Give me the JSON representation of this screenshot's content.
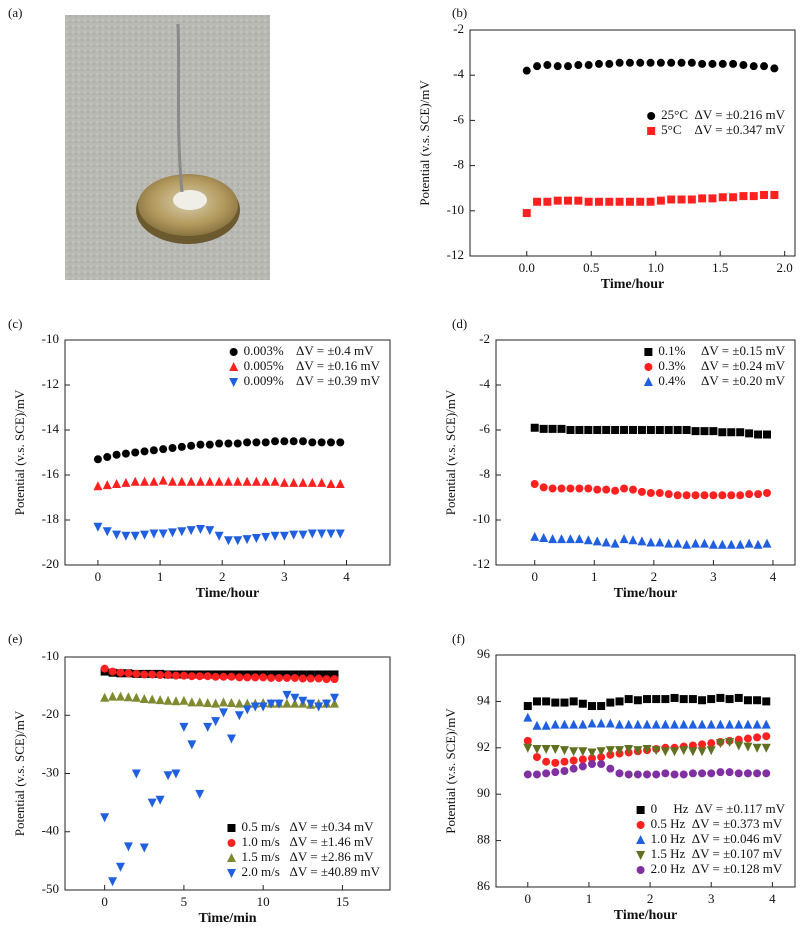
{
  "photo": {
    "label": "(a)"
  },
  "chart_data": [
    {
      "type": "scatter",
      "label": "(b)",
      "x_label": "Time/hour",
      "y_label": "Potential (v.s. SCE)/mV",
      "xlim": [
        -0.44,
        2.08
      ],
      "xticks": [
        {
          "value": 0,
          "label": "0.0"
        },
        {
          "value": 0.5,
          "label": "0.5"
        },
        {
          "value": 1,
          "label": "1.0"
        },
        {
          "value": 1.5,
          "label": "1.5"
        },
        {
          "value": 2,
          "label": "2.0"
        }
      ],
      "ylim": [
        -12,
        -2
      ],
      "yticks": [
        -12,
        -10,
        -8,
        -6,
        -4,
        -2
      ],
      "legend": "center-right",
      "x": [
        0,
        0.08,
        0.16,
        0.24,
        0.32,
        0.4,
        0.48,
        0.56,
        0.64,
        0.72,
        0.8,
        0.88,
        0.96,
        1.04,
        1.12,
        1.2,
        1.28,
        1.36,
        1.44,
        1.52,
        1.6,
        1.68,
        1.76,
        1.84,
        1.92
      ],
      "series": [
        {
          "name": "25°C  ΔV = ±0.216 mV",
          "color": "#000000",
          "marker": "circle",
          "values": [
            -3.8,
            -3.6,
            -3.55,
            -3.6,
            -3.6,
            -3.55,
            -3.55,
            -3.5,
            -3.5,
            -3.45,
            -3.45,
            -3.45,
            -3.45,
            -3.45,
            -3.45,
            -3.45,
            -3.45,
            -3.5,
            -3.5,
            -3.5,
            -3.5,
            -3.55,
            -3.6,
            -3.6,
            -3.7
          ]
        },
        {
          "name": "5°C    ΔV = ±0.347 mV",
          "color": "#ff2020",
          "marker": "square",
          "values": [
            -10.1,
            -9.6,
            -9.6,
            -9.55,
            -9.55,
            -9.55,
            -9.6,
            -9.6,
            -9.6,
            -9.6,
            -9.6,
            -9.6,
            -9.6,
            -9.55,
            -9.5,
            -9.5,
            -9.5,
            -9.45,
            -9.45,
            -9.4,
            -9.4,
            -9.35,
            -9.35,
            -9.3,
            -9.3
          ]
        }
      ]
    },
    {
      "type": "scatter",
      "label": "(c)",
      "x_label": "Time/hour",
      "y_label": "Potential (v.s. SCE)/mV",
      "xlim": [
        -0.53,
        4.7
      ],
      "xticks": [
        0,
        1,
        2,
        3,
        4
      ],
      "ylim": [
        -20,
        -10
      ],
      "yticks": [
        -20,
        -18,
        -16,
        -14,
        -12,
        -10
      ],
      "legend": "top-right",
      "x": [
        0,
        0.15,
        0.3,
        0.45,
        0.6,
        0.75,
        0.9,
        1.05,
        1.2,
        1.35,
        1.5,
        1.65,
        1.8,
        1.95,
        2.1,
        2.25,
        2.4,
        2.55,
        2.7,
        2.85,
        3,
        3.15,
        3.3,
        3.45,
        3.6,
        3.75,
        3.9
      ],
      "series": [
        {
          "name": "0.003%    ΔV = ±0.4 mV",
          "color": "#000000",
          "marker": "circle",
          "values": [
            -15.3,
            -15.2,
            -15.1,
            -15.05,
            -15,
            -14.95,
            -14.9,
            -14.85,
            -14.8,
            -14.75,
            -14.7,
            -14.65,
            -14.65,
            -14.6,
            -14.6,
            -14.6,
            -14.55,
            -14.55,
            -14.55,
            -14.5,
            -14.5,
            -14.5,
            -14.5,
            -14.55,
            -14.55,
            -14.55,
            -14.55
          ]
        },
        {
          "name": "0.005%    ΔV = ±0.16 mV",
          "color": "#ff2020",
          "marker": "triangle-up",
          "values": [
            -16.5,
            -16.45,
            -16.4,
            -16.35,
            -16.3,
            -16.3,
            -16.3,
            -16.25,
            -16.3,
            -16.3,
            -16.3,
            -16.3,
            -16.3,
            -16.3,
            -16.3,
            -16.3,
            -16.3,
            -16.3,
            -16.3,
            -16.3,
            -16.35,
            -16.35,
            -16.35,
            -16.35,
            -16.35,
            -16.4,
            -16.4
          ]
        },
        {
          "name": "0.009%    ΔV = ±0.39 mV",
          "color": "#2060e0",
          "marker": "triangle-down",
          "values": [
            -18.3,
            -18.5,
            -18.65,
            -18.7,
            -18.7,
            -18.65,
            -18.6,
            -18.6,
            -18.55,
            -18.5,
            -18.45,
            -18.4,
            -18.45,
            -18.7,
            -18.9,
            -18.9,
            -18.85,
            -18.8,
            -18.75,
            -18.7,
            -18.7,
            -18.65,
            -18.65,
            -18.6,
            -18.6,
            -18.6,
            -18.6
          ]
        }
      ]
    },
    {
      "type": "scatter",
      "label": "(d)",
      "x_label": "Time/hour",
      "y_label": "Potential (v.s. SCE)/mV",
      "xlim": [
        -0.65,
        4.37
      ],
      "xticks": [
        0,
        1,
        2,
        3,
        4
      ],
      "ylim": [
        -12,
        -2
      ],
      "yticks": [
        -12,
        -10,
        -8,
        -6,
        -4,
        -2
      ],
      "legend": "top-right",
      "x": [
        0,
        0.15,
        0.3,
        0.45,
        0.6,
        0.75,
        0.9,
        1.05,
        1.2,
        1.35,
        1.5,
        1.65,
        1.8,
        1.95,
        2.1,
        2.25,
        2.4,
        2.55,
        2.7,
        2.85,
        3,
        3.15,
        3.3,
        3.45,
        3.6,
        3.75,
        3.9
      ],
      "series": [
        {
          "name": "0.1%     ΔV = ±0.15 mV",
          "color": "#000000",
          "marker": "square",
          "values": [
            -5.9,
            -5.95,
            -5.95,
            -5.95,
            -6,
            -6,
            -6,
            -6,
            -6,
            -6,
            -6,
            -6,
            -6,
            -6,
            -6,
            -6,
            -6,
            -6,
            -6.05,
            -6.05,
            -6.05,
            -6.1,
            -6.1,
            -6.1,
            -6.15,
            -6.2,
            -6.2
          ]
        },
        {
          "name": "0.3%     ΔV = ±0.24 mV",
          "color": "#ff2020",
          "marker": "circle",
          "values": [
            -8.4,
            -8.55,
            -8.6,
            -8.6,
            -8.6,
            -8.6,
            -8.6,
            -8.65,
            -8.65,
            -8.7,
            -8.6,
            -8.65,
            -8.75,
            -8.8,
            -8.8,
            -8.85,
            -8.9,
            -8.9,
            -8.9,
            -8.9,
            -8.9,
            -8.9,
            -8.9,
            -8.9,
            -8.85,
            -8.85,
            -8.8
          ]
        },
        {
          "name": "0.4%     ΔV = ±0.20 mV",
          "color": "#2060e0",
          "marker": "triangle-up",
          "values": [
            -10.75,
            -10.8,
            -10.85,
            -10.85,
            -10.85,
            -10.85,
            -10.9,
            -10.95,
            -11,
            -11.05,
            -10.85,
            -10.9,
            -10.95,
            -11,
            -11,
            -11.05,
            -11.05,
            -11.1,
            -11.05,
            -11.05,
            -11.1,
            -11.1,
            -11.1,
            -11.1,
            -11.05,
            -11.1,
            -11.05
          ]
        }
      ]
    },
    {
      "type": "scatter",
      "label": "(e)",
      "x_label": "Time/min",
      "y_label": "Potential (v.s. SCE)/mV",
      "xlim": [
        -2.5,
        18
      ],
      "xticks": [
        0,
        5,
        10,
        15
      ],
      "ylim": [
        -50,
        -10
      ],
      "yticks": [
        -50,
        -40,
        -30,
        -20,
        -10
      ],
      "legend": "bottom-right",
      "x": [
        0,
        0.5,
        1,
        1.5,
        2,
        2.5,
        3,
        3.5,
        4,
        4.5,
        5,
        5.5,
        6,
        6.5,
        7,
        7.5,
        8,
        8.5,
        9,
        9.5,
        10,
        10.5,
        11,
        11.5,
        12,
        12.5,
        13,
        13.5,
        14,
        14.5
      ],
      "series": [
        {
          "name": "0.5 m/s   ΔV = ±0.34 mV",
          "color": "#000000",
          "marker": "square",
          "values": [
            -12.5,
            -12.7,
            -12.8,
            -12.8,
            -12.9,
            -12.9,
            -12.9,
            -12.9,
            -13,
            -13,
            -13,
            -13,
            -13,
            -13,
            -13,
            -13,
            -13,
            -13,
            -13,
            -13,
            -13,
            -13,
            -13,
            -13,
            -13,
            -13,
            -13,
            -13,
            -13,
            -13
          ]
        },
        {
          "name": "1.0 m/s   ΔV = ±1.46 mV",
          "color": "#ff2020",
          "marker": "circle",
          "values": [
            -12,
            -12.5,
            -12.7,
            -12.8,
            -12.9,
            -13,
            -13,
            -13.1,
            -13.1,
            -13.2,
            -13.2,
            -13.3,
            -13.3,
            -13.3,
            -13.4,
            -13.4,
            -13.4,
            -13.5,
            -13.5,
            -13.5,
            -13.5,
            -13.6,
            -13.6,
            -13.6,
            -13.6,
            -13.7,
            -13.7,
            -13.7,
            -13.8,
            -13.8
          ]
        },
        {
          "name": "1.5 m/s   ΔV = ±2.86 mV",
          "color": "#808a30",
          "marker": "triangle-up",
          "values": [
            -17,
            -16.8,
            -16.8,
            -16.9,
            -17,
            -17.2,
            -17.3,
            -17.4,
            -17.5,
            -17.6,
            -17.5,
            -17.8,
            -17.8,
            -17.9,
            -18,
            -17.8,
            -17.9,
            -18,
            -18,
            -18,
            -17.9,
            -18,
            -18,
            -18,
            -18,
            -18,
            -18.2,
            -18,
            -18,
            -18
          ]
        },
        {
          "name": "2.0 m/s   ΔV = ±40.89 mV",
          "color": "#2060e0",
          "marker": "triangle-down",
          "values": [
            -37.5,
            -48.5,
            -46,
            -42.5,
            -30,
            -42.7,
            -35,
            -34.5,
            -30.3,
            -30,
            -22,
            -25,
            -33.5,
            -22,
            -21,
            -19.5,
            -24,
            -20,
            -19,
            -18.5,
            -18.5,
            -18,
            -18,
            -16.5,
            -17,
            -17.5,
            -18,
            -18.5,
            -18,
            -17
          ]
        }
      ]
    },
    {
      "type": "scatter",
      "label": "(f)",
      "x_label": "Time/hour",
      "y_label": "Potential (v.s. SCE)/mV",
      "xlim": [
        -0.52,
        4.37
      ],
      "xticks": [
        0,
        1,
        2,
        3,
        4
      ],
      "ylim": [
        86,
        96
      ],
      "yticks": [
        86,
        88,
        90,
        92,
        94,
        96
      ],
      "legend": "bottom-right",
      "x": [
        0,
        0.15,
        0.3,
        0.45,
        0.6,
        0.75,
        0.9,
        1.05,
        1.2,
        1.35,
        1.5,
        1.65,
        1.8,
        1.95,
        2.1,
        2.25,
        2.4,
        2.55,
        2.7,
        2.85,
        3,
        3.15,
        3.3,
        3.45,
        3.6,
        3.75,
        3.9
      ],
      "series": [
        {
          "name": "0     Hz  ΔV = ±0.117 mV",
          "color": "#000000",
          "marker": "square",
          "values": [
            93.8,
            94,
            94,
            93.95,
            93.95,
            94,
            93.9,
            93.8,
            93.8,
            93.95,
            94,
            94.1,
            94.05,
            94.1,
            94.1,
            94.1,
            94.15,
            94.1,
            94.1,
            94.05,
            94.1,
            94.15,
            94.1,
            94.15,
            94.05,
            94.05,
            94
          ]
        },
        {
          "name": "0.5 Hz  ΔV = ±0.373 mV",
          "color": "#ff2020",
          "marker": "circle",
          "values": [
            92.3,
            91.6,
            91.4,
            91.35,
            91.4,
            91.45,
            91.5,
            91.55,
            91.6,
            91.7,
            91.75,
            91.8,
            91.85,
            91.9,
            91.95,
            92,
            92,
            92.05,
            92.1,
            92.15,
            92.2,
            92.25,
            92.3,
            92.35,
            92.4,
            92.45,
            92.5
          ]
        },
        {
          "name": "1.0 Hz  ΔV = ±0.046 mV",
          "color": "#2060e0",
          "marker": "triangle-up",
          "values": [
            93.3,
            92.95,
            92.95,
            93,
            93,
            93,
            93,
            93.05,
            93.05,
            93.05,
            93,
            93,
            93,
            93,
            93,
            93,
            93,
            93,
            93,
            93,
            93,
            93,
            93,
            93,
            93,
            93,
            93
          ]
        },
        {
          "name": "1.5 Hz  ΔV = ±0.107 mV",
          "color": "#607020",
          "marker": "triangle-down",
          "values": [
            92,
            91.95,
            91.95,
            91.95,
            91.9,
            91.85,
            91.85,
            91.8,
            91.85,
            91.9,
            91.9,
            91.95,
            91.9,
            91.95,
            91.9,
            91.85,
            91.85,
            91.9,
            91.85,
            91.85,
            91.9,
            92.2,
            92.25,
            92.1,
            92.05,
            92,
            92
          ]
        },
        {
          "name": "2.0 Hz  ΔV = ±0.128 mV",
          "color": "#8030a0",
          "marker": "circle",
          "values": [
            90.85,
            90.85,
            90.9,
            90.95,
            91,
            91.1,
            91.2,
            91.3,
            91.3,
            91.1,
            90.9,
            90.85,
            90.85,
            90.85,
            90.85,
            90.9,
            90.85,
            90.85,
            90.9,
            90.9,
            90.9,
            90.95,
            90.95,
            90.9,
            90.9,
            90.9,
            90.9
          ]
        }
      ]
    }
  ]
}
